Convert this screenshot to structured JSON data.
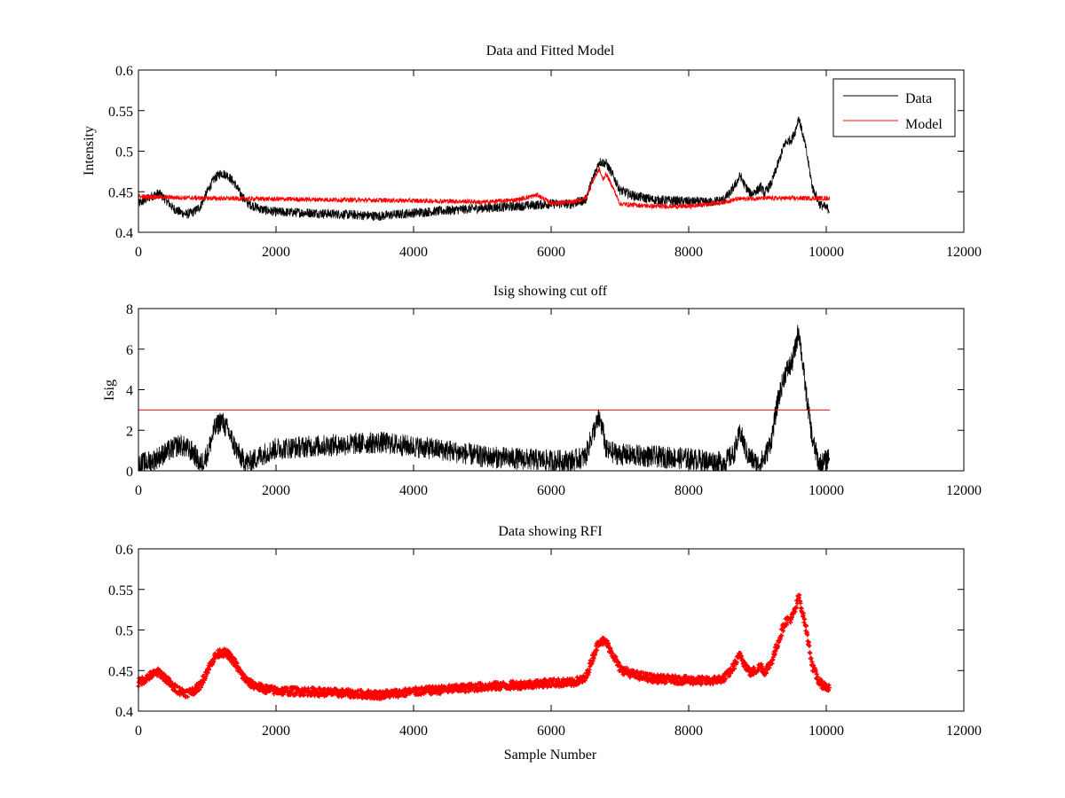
{
  "chart_data": [
    {
      "type": "line",
      "title": "Data and Fitted Model",
      "xlabel": "",
      "ylabel": "Intensity",
      "xlim": [
        0,
        12000
      ],
      "ylim": [
        0.4,
        0.6
      ],
      "xticks": [
        0,
        2000,
        4000,
        6000,
        8000,
        10000,
        12000
      ],
      "yticks": [
        0.4,
        0.45,
        0.5,
        0.55,
        0.6
      ],
      "ytick_labels": [
        "0.4",
        "0.45",
        "0.5",
        "0.55",
        "0.6"
      ],
      "grid": false,
      "legend": {
        "placement": "top-right",
        "entries": [
          "Data",
          "Model"
        ]
      },
      "series": [
        {
          "name": "Data",
          "color": "#000000",
          "noise": 0.006,
          "x": [
            0,
            100,
            200,
            300,
            400,
            500,
            600,
            700,
            800,
            900,
            1000,
            1100,
            1200,
            1300,
            1400,
            1500,
            1600,
            1800,
            2000,
            2500,
            3000,
            3500,
            4000,
            4500,
            5000,
            5500,
            6000,
            6300,
            6500,
            6600,
            6700,
            6800,
            6900,
            7000,
            7200,
            7500,
            8000,
            8300,
            8500,
            8600,
            8700,
            8750,
            8800,
            8900,
            9000,
            9050,
            9100,
            9200,
            9300,
            9400,
            9500,
            9550,
            9600,
            9700,
            9800,
            9900,
            10000,
            10050
          ],
          "y": [
            0.435,
            0.44,
            0.445,
            0.448,
            0.44,
            0.43,
            0.425,
            0.422,
            0.425,
            0.432,
            0.45,
            0.466,
            0.473,
            0.47,
            0.46,
            0.445,
            0.435,
            0.428,
            0.425,
            0.424,
            0.422,
            0.42,
            0.424,
            0.427,
            0.43,
            0.432,
            0.435,
            0.435,
            0.44,
            0.465,
            0.487,
            0.485,
            0.47,
            0.452,
            0.445,
            0.44,
            0.438,
            0.437,
            0.44,
            0.448,
            0.462,
            0.47,
            0.46,
            0.447,
            0.452,
            0.456,
            0.448,
            0.46,
            0.485,
            0.51,
            0.515,
            0.525,
            0.542,
            0.505,
            0.455,
            0.435,
            0.43,
            0.428
          ]
        },
        {
          "name": "Model",
          "color": "#ff0000",
          "noise": 0.003,
          "x": [
            0,
            500,
            1000,
            2000,
            3000,
            4000,
            4800,
            5000,
            5500,
            5800,
            6000,
            6300,
            6500,
            6600,
            6700,
            6750,
            6800,
            6900,
            7000,
            7500,
            8000,
            8500,
            8700,
            9000,
            10000,
            10050
          ],
          "y": [
            0.444,
            0.443,
            0.442,
            0.441,
            0.44,
            0.439,
            0.438,
            0.437,
            0.44,
            0.446,
            0.436,
            0.437,
            0.442,
            0.462,
            0.478,
            0.465,
            0.472,
            0.455,
            0.435,
            0.432,
            0.432,
            0.437,
            0.441,
            0.442,
            0.442,
            0.442
          ]
        }
      ]
    },
    {
      "type": "line",
      "title": "Isig showing cut off",
      "xlabel": "",
      "ylabel": "Isig",
      "xlim": [
        0,
        12000
      ],
      "ylim": [
        0,
        8
      ],
      "xticks": [
        0,
        2000,
        4000,
        6000,
        8000,
        10000,
        12000
      ],
      "yticks": [
        0,
        2,
        4,
        6,
        8
      ],
      "ytick_labels": [
        "0",
        "2",
        "4",
        "6",
        "8"
      ],
      "grid": false,
      "series": [
        {
          "color": "#000000",
          "noise": 0.55,
          "x": [
            0,
            200,
            400,
            600,
            800,
            900,
            1000,
            1100,
            1200,
            1300,
            1400,
            1500,
            1600,
            1800,
            2000,
            2500,
            3000,
            3500,
            4000,
            4500,
            5000,
            5500,
            6000,
            6300,
            6500,
            6600,
            6700,
            6750,
            6800,
            7000,
            7500,
            8000,
            8500,
            8650,
            8750,
            8850,
            9000,
            9100,
            9200,
            9300,
            9400,
            9500,
            9550,
            9600,
            9700,
            9800,
            9900,
            10000,
            10050
          ],
          "y": [
            0.3,
            0.5,
            0.9,
            1.3,
            0.9,
            0.3,
            0.8,
            2.0,
            2.5,
            2.0,
            1.2,
            0.6,
            0.4,
            0.8,
            1.1,
            1.2,
            1.3,
            1.4,
            1.2,
            1.0,
            0.7,
            0.6,
            0.5,
            0.5,
            0.7,
            1.8,
            2.6,
            2.0,
            1.0,
            0.8,
            0.7,
            0.6,
            0.4,
            0.8,
            1.9,
            0.8,
            0.3,
            0.6,
            1.5,
            3.5,
            4.8,
            5.3,
            6.0,
            7.0,
            4.0,
            1.5,
            0.3,
            0.5,
            0.8
          ]
        },
        {
          "color": "#ff0000",
          "noise": 0,
          "x": [
            0,
            10050
          ],
          "y": [
            3,
            3
          ]
        }
      ]
    },
    {
      "type": "scatter",
      "title": "Data showing RFI",
      "xlabel": "Sample Number",
      "ylabel": "",
      "xlim": [
        0,
        12000
      ],
      "ylim": [
        0.4,
        0.6
      ],
      "xticks": [
        0,
        2000,
        4000,
        6000,
        8000,
        10000,
        12000
      ],
      "yticks": [
        0.4,
        0.45,
        0.5,
        0.55,
        0.6
      ],
      "ytick_labels": [
        "0.4",
        "0.45",
        "0.5",
        "0.55",
        "0.6"
      ],
      "grid": false,
      "series": [
        {
          "color": "#ff0000",
          "noise": 0.005,
          "x": [
            0,
            100,
            200,
            300,
            400,
            500,
            600,
            700,
            800,
            900,
            1000,
            1100,
            1200,
            1300,
            1400,
            1500,
            1600,
            1800,
            2000,
            2500,
            3000,
            3500,
            4000,
            4500,
            5000,
            5500,
            6000,
            6300,
            6500,
            6600,
            6700,
            6800,
            6900,
            7000,
            7200,
            7500,
            8000,
            8300,
            8500,
            8600,
            8700,
            8750,
            8800,
            8900,
            9000,
            9050,
            9100,
            9200,
            9300,
            9400,
            9500,
            9550,
            9600,
            9700,
            9800,
            9900,
            10000,
            10050
          ],
          "y": [
            0.435,
            0.44,
            0.445,
            0.448,
            0.44,
            0.43,
            0.425,
            0.422,
            0.425,
            0.432,
            0.45,
            0.466,
            0.473,
            0.47,
            0.46,
            0.445,
            0.435,
            0.428,
            0.425,
            0.424,
            0.422,
            0.42,
            0.424,
            0.427,
            0.43,
            0.432,
            0.435,
            0.435,
            0.44,
            0.465,
            0.487,
            0.485,
            0.47,
            0.452,
            0.445,
            0.44,
            0.438,
            0.437,
            0.44,
            0.448,
            0.462,
            0.47,
            0.46,
            0.447,
            0.452,
            0.456,
            0.448,
            0.46,
            0.485,
            0.51,
            0.515,
            0.525,
            0.542,
            0.505,
            0.455,
            0.435,
            0.43,
            0.428
          ]
        }
      ]
    }
  ]
}
